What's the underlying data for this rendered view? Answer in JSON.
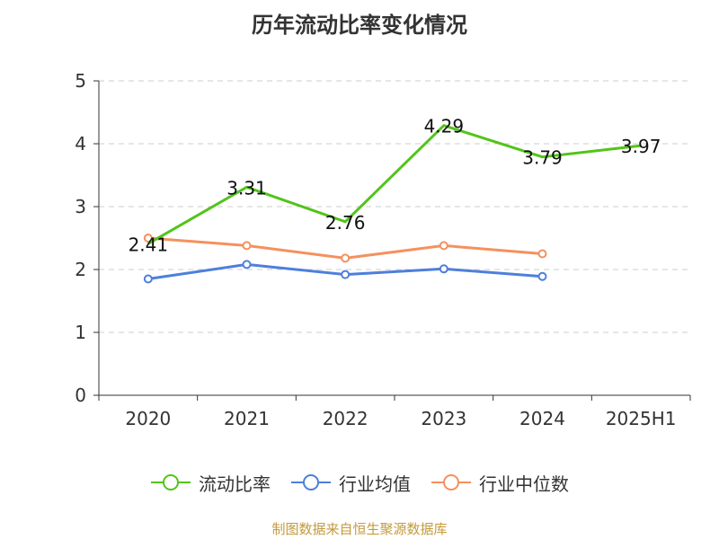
{
  "title": "历年流动比率变化情况",
  "source": "制图数据来自恒生聚源数据库",
  "colors": {
    "current_ratio": "#52c41a",
    "industry_avg": "#4e7fdb",
    "industry_median": "#f4915e",
    "grid": "#cccccc",
    "axis": "#333333"
  },
  "legend": [
    {
      "label": "流动比率",
      "color": "#52c41a"
    },
    {
      "label": "行业均值",
      "color": "#4e7fdb"
    },
    {
      "label": "行业中位数",
      "color": "#f4915e"
    }
  ],
  "chart_data": {
    "type": "line",
    "title": "历年流动比率变化情况",
    "categories": [
      "2020",
      "2021",
      "2022",
      "2023",
      "2024",
      "2025H1"
    ],
    "ylim": [
      0,
      5
    ],
    "yticks": [
      "0",
      "1",
      "2",
      "3",
      "4",
      "5"
    ],
    "grid": true,
    "legend_position": "bottom",
    "series": [
      {
        "name": "流动比率",
        "color": "#52c41a",
        "values": [
          2.41,
          3.31,
          2.76,
          4.29,
          3.79,
          3.97
        ],
        "labels": [
          "2.41",
          "3.31",
          "2.76",
          "4.29",
          "3.79",
          "3.97"
        ],
        "markers": false
      },
      {
        "name": "行业均值",
        "color": "#4e7fdb",
        "values": [
          1.85,
          2.08,
          1.92,
          2.01,
          1.89,
          null
        ],
        "markers": true
      },
      {
        "name": "行业中位数",
        "color": "#f4915e",
        "values": [
          2.5,
          2.38,
          2.18,
          2.38,
          2.25,
          null
        ],
        "markers": true
      }
    ]
  }
}
